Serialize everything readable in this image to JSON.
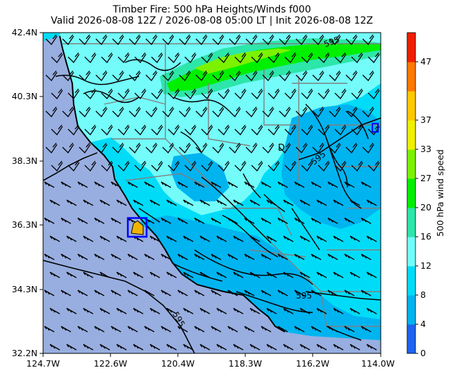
{
  "title": {
    "line1": "Timber Fire: 500 hPa Heights/Winds f000",
    "line2": "Valid 2026-08-08 12Z / 2026-08-08 05:00 LT | Init 2026-08-08 12Z"
  },
  "map": {
    "lon_range": [
      -124.7,
      -114.0
    ],
    "lat_range": [
      32.2,
      42.4
    ],
    "x_tick_labels": [
      "124.7W",
      "122.6W",
      "120.4W",
      "118.3W",
      "116.2W",
      "114.0W"
    ],
    "y_tick_labels": [
      "32.2N",
      "34.3N",
      "36.3N",
      "38.3N",
      "40.3N",
      "42.4N"
    ],
    "contour_labels": [
      "595",
      "595",
      "595",
      "595"
    ],
    "high_low_markers": [
      "D"
    ],
    "fire_location": {
      "lon": -121.4,
      "lat": 36.3
    }
  },
  "colorbar": {
    "label": "500 hPa wind speed",
    "ticks": [
      "0",
      "4",
      "8",
      "12",
      "16",
      "20",
      "27",
      "33",
      "37",
      "47"
    ],
    "colors": [
      "#1e64f0",
      "#00b4f0",
      "#00dcf8",
      "#73fcfa",
      "#2de6aa",
      "#00f000",
      "#7cf200",
      "#f0f000",
      "#ffc800",
      "#ff7800",
      "#f01e00"
    ]
  },
  "colors": {
    "ocean": "#98aee0",
    "land": "#00dcf8",
    "state_borders": "#808080",
    "coastline": "#000000",
    "fire_box": "#0000ff",
    "fire_marker": "#f0b400"
  }
}
